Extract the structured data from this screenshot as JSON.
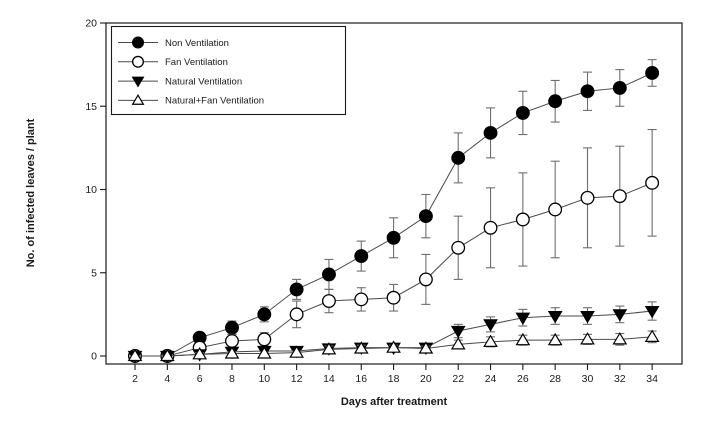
{
  "chart_data": {
    "type": "line",
    "title": "",
    "xlabel": "Days after treatment",
    "ylabel": "No. of infected leaves / plant",
    "x": [
      2,
      4,
      6,
      8,
      10,
      12,
      14,
      16,
      18,
      20,
      22,
      24,
      26,
      28,
      30,
      32,
      34
    ],
    "xlim": [
      0,
      36
    ],
    "ylim": [
      0,
      20
    ],
    "yticks": [
      0,
      5,
      10,
      15,
      20
    ],
    "grid": false,
    "legend_position": "top-left",
    "error_bars": true,
    "series": [
      {
        "name": "Non Ventilation",
        "marker": "filled-circle",
        "values": [
          0,
          0,
          1.1,
          1.7,
          2.5,
          4.0,
          4.9,
          6.0,
          7.1,
          8.4,
          11.9,
          13.4,
          14.6,
          15.3,
          15.9,
          16.1,
          17.0
        ],
        "errors": [
          0,
          0,
          0.3,
          0.4,
          0.45,
          0.6,
          0.9,
          0.9,
          1.2,
          1.3,
          1.5,
          1.5,
          1.3,
          1.25,
          1.15,
          1.1,
          0.8
        ]
      },
      {
        "name": "Fan Ventilation",
        "marker": "open-circle",
        "values": [
          0,
          0,
          0.5,
          0.9,
          1.0,
          2.5,
          3.3,
          3.4,
          3.5,
          4.6,
          6.5,
          7.7,
          8.2,
          8.8,
          9.5,
          9.6,
          10.4
        ],
        "errors": [
          0,
          0,
          0.3,
          0.4,
          0.4,
          0.8,
          0.7,
          0.7,
          0.8,
          1.5,
          1.9,
          2.4,
          2.8,
          2.9,
          3.0,
          3.0,
          3.2
        ]
      },
      {
        "name": "Natural Ventilation",
        "marker": "filled-triangle-down",
        "values": [
          0,
          0,
          0.1,
          0.25,
          0.3,
          0.3,
          0.45,
          0.5,
          0.5,
          0.5,
          1.5,
          1.9,
          2.3,
          2.4,
          2.4,
          2.5,
          2.7
        ],
        "errors": [
          0,
          0,
          0.1,
          0.15,
          0.15,
          0.15,
          0.2,
          0.2,
          0.15,
          0.15,
          0.4,
          0.45,
          0.5,
          0.5,
          0.5,
          0.5,
          0.55
        ]
      },
      {
        "name": "Natural+Fan Ventilation",
        "marker": "open-triangle-up",
        "values": [
          0,
          0,
          0.1,
          0.15,
          0.15,
          0.2,
          0.4,
          0.45,
          0.5,
          0.45,
          0.7,
          0.85,
          0.95,
          0.95,
          1.0,
          1.0,
          1.15
        ],
        "errors": [
          0,
          0,
          0.1,
          0.1,
          0.1,
          0.1,
          0.2,
          0.2,
          0.15,
          0.15,
          0.25,
          0.3,
          0.3,
          0.3,
          0.3,
          0.35,
          0.35
        ]
      }
    ]
  },
  "colors": {
    "background": "#ffffff",
    "frame": "#1a1a1a",
    "text": "#1a1a1a",
    "series_line": "#4a4a4a",
    "error_bar": "#6e6e6e",
    "marker_stroke": "#000000",
    "marker_fill_solid": "#000000",
    "marker_fill_open": "#ffffff"
  }
}
